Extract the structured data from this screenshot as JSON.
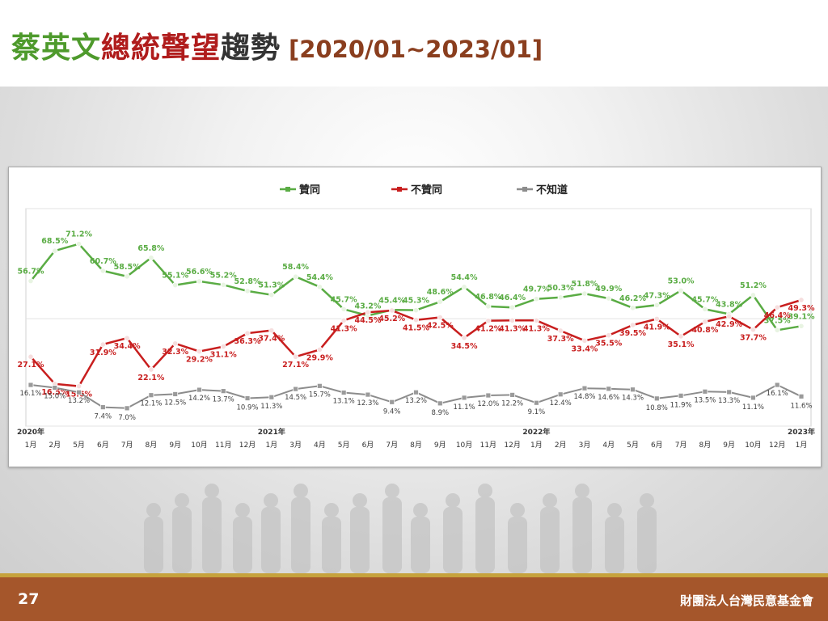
{
  "slide": {
    "title_parts": [
      {
        "text": "蔡英文",
        "color": "#4e9a2c"
      },
      {
        "text": "總統聲望",
        "color": "#b01c1c"
      },
      {
        "text": "趨勢",
        "color": "#333333"
      }
    ],
    "subtitle": "[2020/01~2023/01]",
    "subtitle_color": "#8a3e1e",
    "page_number": "27",
    "organization": "財團法人台灣民意基金會"
  },
  "chart_data": {
    "type": "line",
    "categories": [
      "1月",
      "2月",
      "5月",
      "6月",
      "7月",
      "8月",
      "9月",
      "10月",
      "11月",
      "12月",
      "1月",
      "3月",
      "4月",
      "5月",
      "6月",
      "7月",
      "8月",
      "9月",
      "10月",
      "11月",
      "12月",
      "1月",
      "2月",
      "3月",
      "4月",
      "5月",
      "6月",
      "7月",
      "8月",
      "9月",
      "10月",
      "12月",
      "1月"
    ],
    "year_labels": [
      {
        "index": 0,
        "label": "2020年"
      },
      {
        "index": 10,
        "label": "2021年"
      },
      {
        "index": 21,
        "label": "2022年"
      },
      {
        "index": 32,
        "label": "2023年"
      }
    ],
    "ylim": [
      0,
      85
    ],
    "legend_position": "top-center",
    "gridlines": [
      0,
      42,
      85
    ],
    "series": [
      {
        "name": "贊同",
        "color": "#5aac44",
        "label_color": "#5aac44",
        "values": [
          56.7,
          68.5,
          71.2,
          60.7,
          58.5,
          65.8,
          55.1,
          56.6,
          55.2,
          52.8,
          51.3,
          58.4,
          54.4,
          45.7,
          43.2,
          45.4,
          45.3,
          48.6,
          54.4,
          46.8,
          46.4,
          49.7,
          50.3,
          51.8,
          49.9,
          46.2,
          47.3,
          53.0,
          45.7,
          43.8,
          51.2,
          37.5,
          39.1
        ]
      },
      {
        "name": "不贊同",
        "color": "#c81e1e",
        "label_color": "#c81e1e",
        "values": [
          27.1,
          16.5,
          15.6,
          31.9,
          34.4,
          22.1,
          32.3,
          29.2,
          31.1,
          36.3,
          37.4,
          27.1,
          29.9,
          41.3,
          44.5,
          45.2,
          41.5,
          42.5,
          34.5,
          41.2,
          41.3,
          41.3,
          37.3,
          33.4,
          35.5,
          39.5,
          41.9,
          35.1,
          40.8,
          42.9,
          37.7,
          46.4,
          49.3
        ]
      },
      {
        "name": "不知道",
        "color": "#8c8c8c",
        "label_color": "#404040",
        "values": [
          16.1,
          15.0,
          13.2,
          7.4,
          7.0,
          12.1,
          12.5,
          14.2,
          13.7,
          10.9,
          11.3,
          14.5,
          15.7,
          13.1,
          12.3,
          9.4,
          13.2,
          8.9,
          11.1,
          12.0,
          12.2,
          9.1,
          12.4,
          14.8,
          14.6,
          14.3,
          10.8,
          11.9,
          13.5,
          13.3,
          11.1,
          16.1,
          11.6
        ]
      }
    ]
  }
}
